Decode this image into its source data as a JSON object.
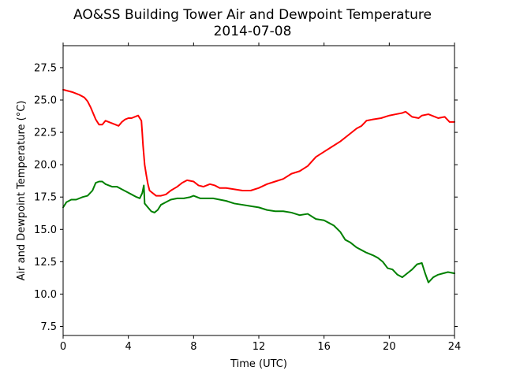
{
  "chart_data": {
    "type": "line",
    "title": "AO&SS Building Tower Air and Dewpoint Temperature",
    "subtitle": "2014-07-08",
    "xlabel": "Time (UTC)",
    "ylabel": "Air and Dewpoint Temperature (°C)",
    "xlim": [
      0,
      24
    ],
    "ylim": [
      6.8,
      29.2
    ],
    "xticks": [
      0,
      4,
      8,
      12,
      16,
      20,
      24
    ],
    "xtick_labels": [
      "0",
      "4",
      "8",
      "12",
      "16",
      "20",
      "24"
    ],
    "yticks": [
      7.5,
      10.0,
      12.5,
      15.0,
      17.5,
      20.0,
      22.5,
      25.0,
      27.5
    ],
    "ytick_labels": [
      "7.5",
      "10.0",
      "12.5",
      "15.0",
      "17.5",
      "20.0",
      "22.5",
      "25.0",
      "27.5"
    ],
    "grid": false,
    "legend": "none",
    "series": [
      {
        "color": "#ff0000",
        "x": [
          0,
          0.3,
          0.6,
          1.0,
          1.3,
          1.5,
          1.7,
          1.9,
          2.0,
          2.2,
          2.4,
          2.6,
          2.8,
          3.0,
          3.2,
          3.4,
          3.6,
          3.8,
          4.0,
          4.2,
          4.4,
          4.6,
          4.8,
          4.85,
          4.9,
          5.0,
          5.1,
          5.2,
          5.3,
          5.5,
          5.7,
          6.0,
          6.3,
          6.6,
          7.0,
          7.3,
          7.6,
          8.0,
          8.3,
          8.6,
          9.0,
          9.3,
          9.6,
          10.0,
          10.5,
          11.0,
          11.5,
          12.0,
          12.5,
          13.0,
          13.5,
          14.0,
          14.5,
          15.0,
          15.5,
          16.0,
          16.5,
          17.0,
          17.5,
          18.0,
          18.3,
          18.6,
          19.0,
          19.5,
          20.0,
          20.4,
          20.8,
          21.0,
          21.4,
          21.8,
          22.0,
          22.4,
          22.8,
          23.0,
          23.4,
          23.7,
          24.0
        ],
        "y": [
          25.8,
          25.7,
          25.6,
          25.4,
          25.2,
          24.9,
          24.4,
          23.8,
          23.5,
          23.1,
          23.1,
          23.4,
          23.3,
          23.2,
          23.1,
          23.0,
          23.3,
          23.5,
          23.6,
          23.6,
          23.7,
          23.8,
          23.4,
          22.5,
          21.5,
          20.0,
          19.2,
          18.5,
          18.0,
          17.8,
          17.6,
          17.6,
          17.7,
          18.0,
          18.3,
          18.6,
          18.8,
          18.7,
          18.4,
          18.3,
          18.5,
          18.4,
          18.2,
          18.2,
          18.1,
          18.0,
          18.0,
          18.2,
          18.5,
          18.7,
          18.9,
          19.3,
          19.5,
          19.9,
          20.6,
          21.0,
          21.4,
          21.8,
          22.3,
          22.8,
          23.0,
          23.4,
          23.5,
          23.6,
          23.8,
          23.9,
          24.0,
          24.1,
          23.7,
          23.6,
          23.8,
          23.9,
          23.7,
          23.6,
          23.7,
          23.3,
          23.3
        ]
      },
      {
        "color": "#008000",
        "x": [
          0,
          0.2,
          0.5,
          0.8,
          1.2,
          1.5,
          1.8,
          2.0,
          2.2,
          2.4,
          2.6,
          2.8,
          3.0,
          3.3,
          3.6,
          3.9,
          4.2,
          4.5,
          4.7,
          4.85,
          4.95,
          5.0,
          5.2,
          5.4,
          5.6,
          5.8,
          6.0,
          6.3,
          6.6,
          7.0,
          7.4,
          7.8,
          8.0,
          8.4,
          8.8,
          9.2,
          9.6,
          10.0,
          10.5,
          11.0,
          11.5,
          12.0,
          12.5,
          13.0,
          13.5,
          14.0,
          14.5,
          15.0,
          15.5,
          16.0,
          16.3,
          16.6,
          17.0,
          17.3,
          17.6,
          18.0,
          18.3,
          18.6,
          19.0,
          19.3,
          19.6,
          19.9,
          20.2,
          20.5,
          20.8,
          21.1,
          21.4,
          21.7,
          22.0,
          22.2,
          22.4,
          22.7,
          23.0,
          23.3,
          23.6,
          24.0
        ],
        "y": [
          16.7,
          17.1,
          17.3,
          17.3,
          17.5,
          17.6,
          18.0,
          18.6,
          18.7,
          18.7,
          18.5,
          18.4,
          18.3,
          18.3,
          18.1,
          17.9,
          17.7,
          17.5,
          17.4,
          17.8,
          18.4,
          17.0,
          16.7,
          16.4,
          16.3,
          16.5,
          16.9,
          17.1,
          17.3,
          17.4,
          17.4,
          17.5,
          17.6,
          17.4,
          17.4,
          17.4,
          17.3,
          17.2,
          17.0,
          16.9,
          16.8,
          16.7,
          16.5,
          16.4,
          16.4,
          16.3,
          16.1,
          16.2,
          15.8,
          15.7,
          15.5,
          15.3,
          14.8,
          14.2,
          14.0,
          13.6,
          13.4,
          13.2,
          13.0,
          12.8,
          12.5,
          12.0,
          11.9,
          11.5,
          11.3,
          11.6,
          11.9,
          12.3,
          12.4,
          11.6,
          10.9,
          11.3,
          11.5,
          11.6,
          11.7,
          11.6
        ]
      }
    ]
  }
}
